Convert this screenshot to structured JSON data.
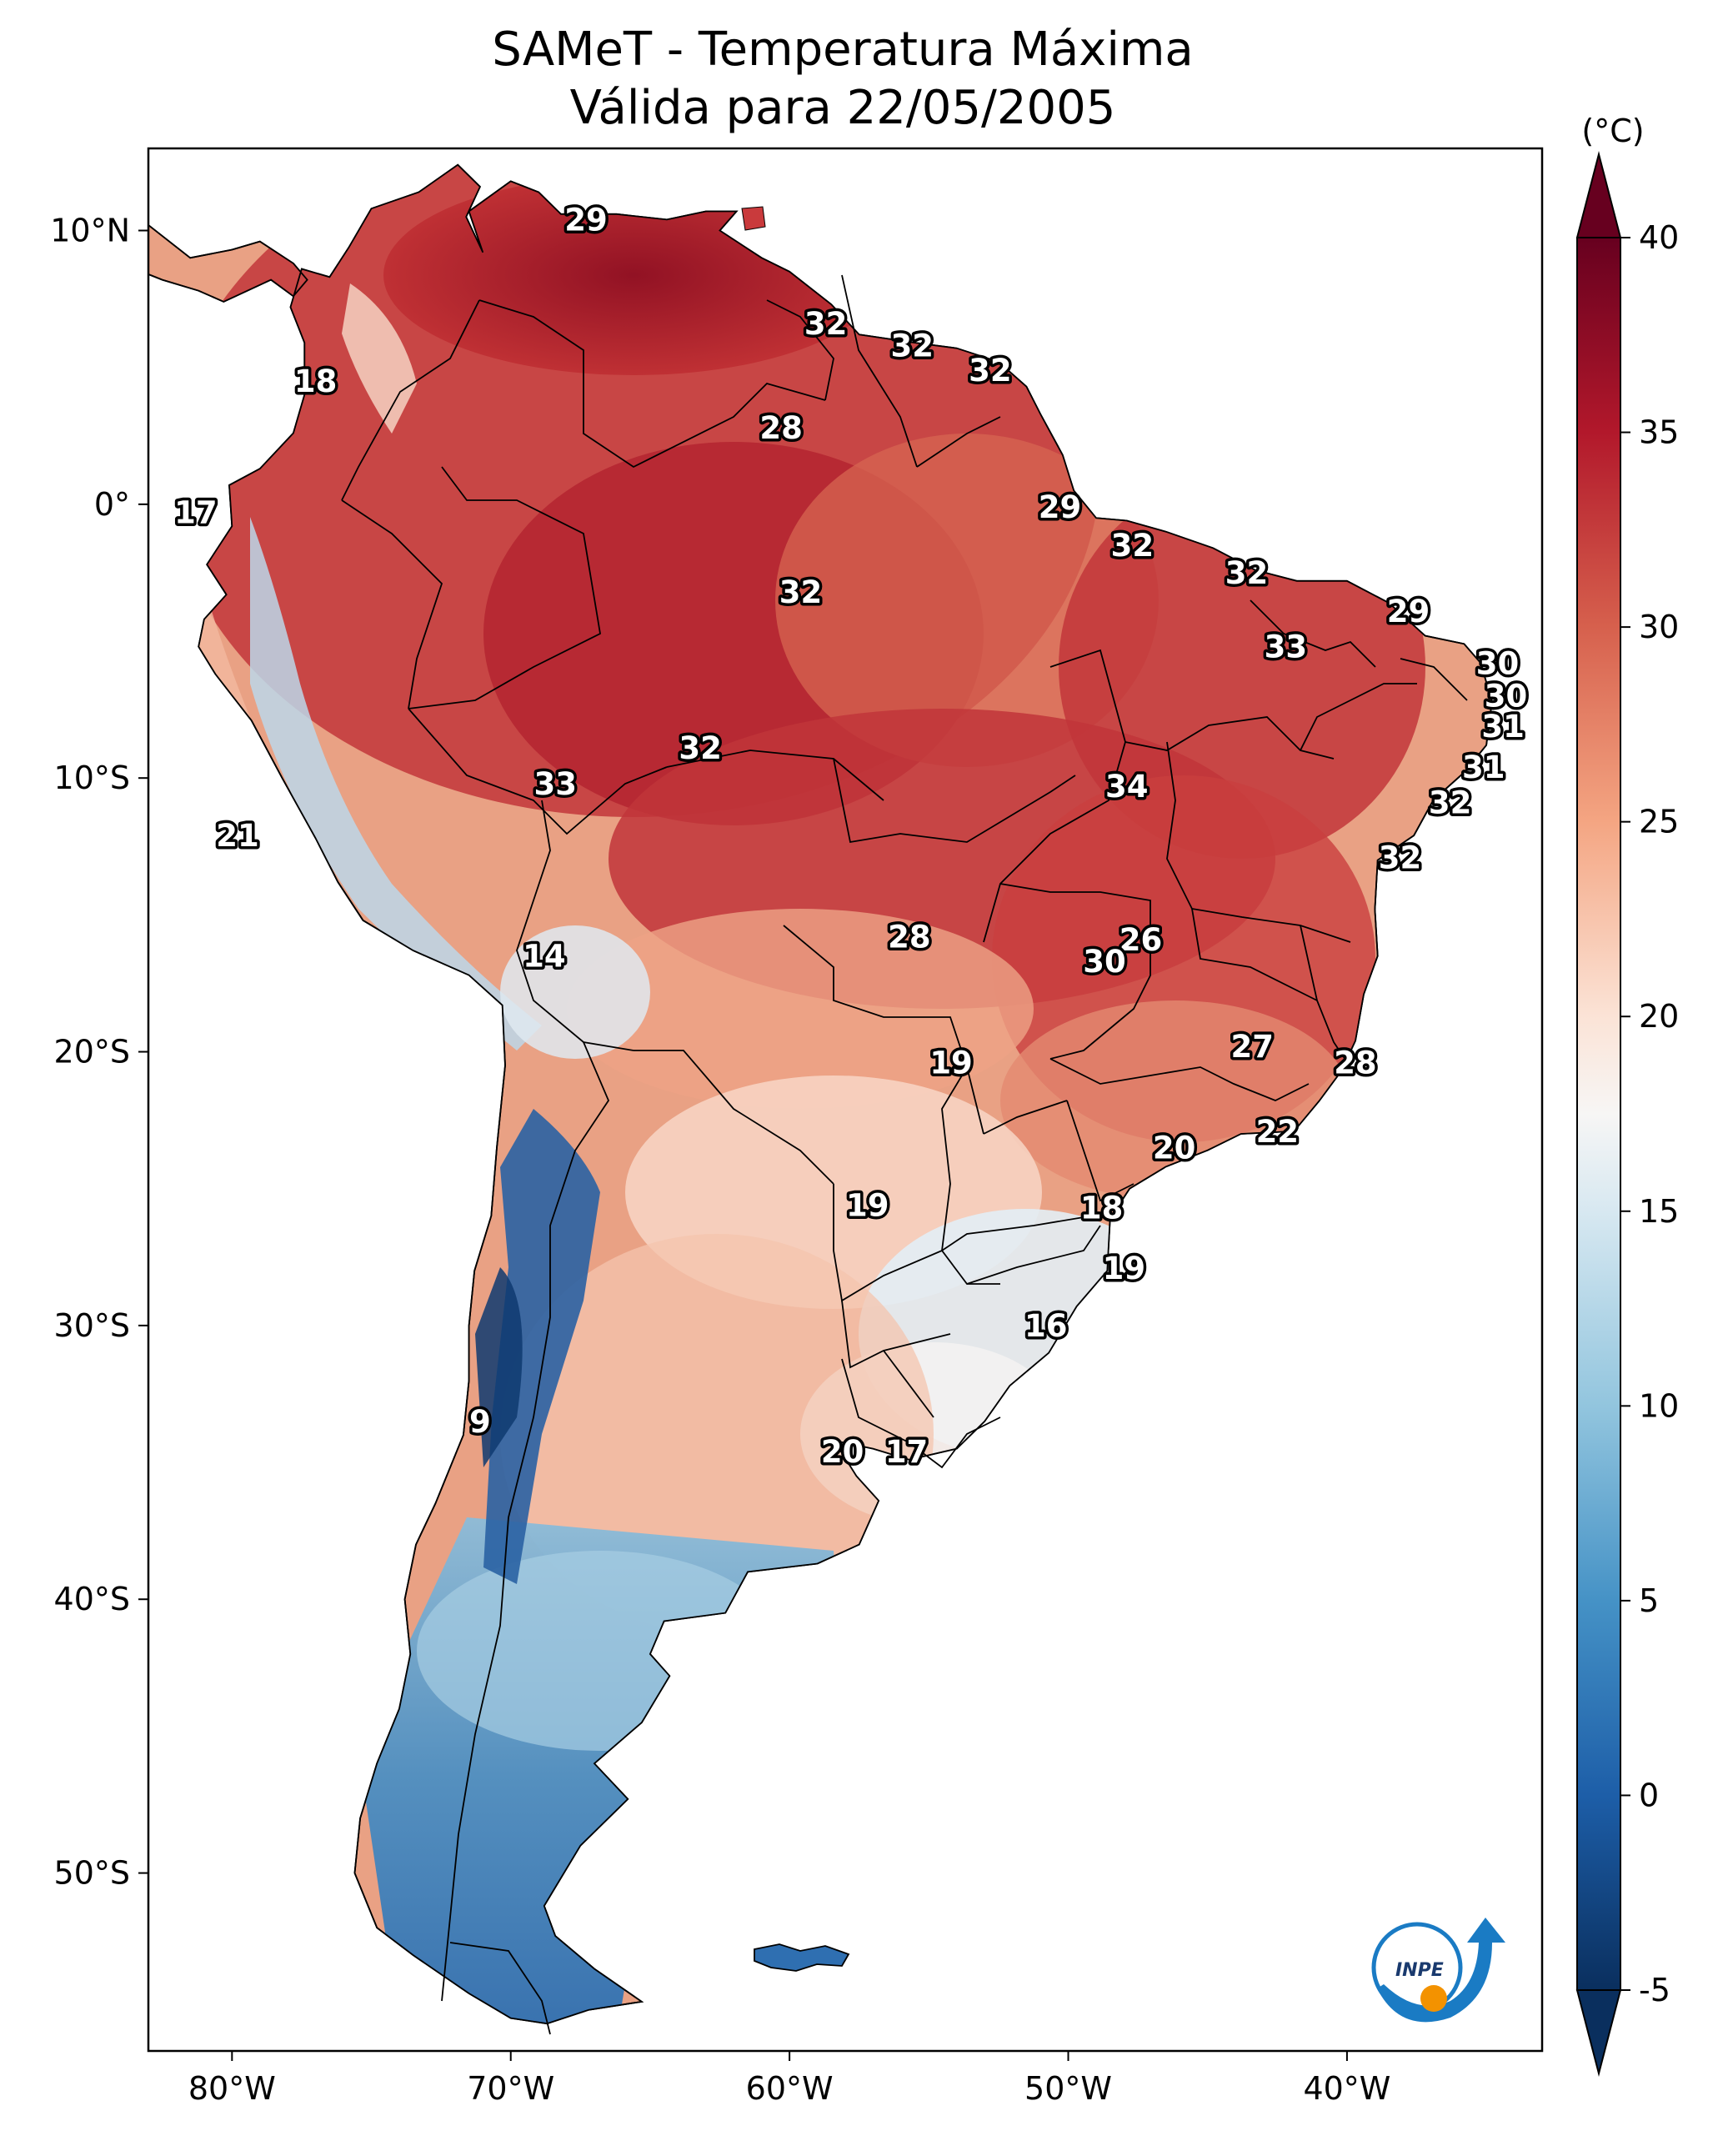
{
  "title": {
    "line1": "SAMeT - Temperatura Máxima",
    "line2": "Válida para 22/05/2005"
  },
  "axes": {
    "lon_ticks": [
      "80°W",
      "70°W",
      "60°W",
      "50°W",
      "40°W"
    ],
    "lat_ticks": [
      "10°N",
      "0°",
      "10°S",
      "20°S",
      "30°S",
      "40°S",
      "50°S"
    ],
    "lon_range": [
      -83,
      -33
    ],
    "lat_range": [
      -56.5,
      13
    ]
  },
  "colorbar": {
    "unit": "(°C)",
    "ticks": [
      "-5",
      "0",
      "5",
      "10",
      "15",
      "20",
      "25",
      "30",
      "35",
      "40"
    ],
    "range": [
      -5,
      40
    ],
    "extend": "both",
    "colormap": "RdBu_r"
  },
  "logo": {
    "text": "INPE",
    "colors": {
      "arc": "#1a7bc4",
      "dot": "#f39200"
    }
  },
  "point_labels": [
    {
      "text": "29",
      "lon": -67.3,
      "lat": 10.4
    },
    {
      "text": "18",
      "lon": -77.0,
      "lat": 4.5
    },
    {
      "text": "17",
      "lon": -81.3,
      "lat": -0.3
    },
    {
      "text": "32",
      "lon": -58.7,
      "lat": 6.6
    },
    {
      "text": "32",
      "lon": -55.6,
      "lat": 5.8
    },
    {
      "text": "32",
      "lon": -52.8,
      "lat": 4.9
    },
    {
      "text": "28",
      "lon": -60.3,
      "lat": 2.8
    },
    {
      "text": "29",
      "lon": -50.3,
      "lat": -0.1
    },
    {
      "text": "32",
      "lon": -47.7,
      "lat": -1.5
    },
    {
      "text": "32",
      "lon": -43.6,
      "lat": -2.5
    },
    {
      "text": "32",
      "lon": -59.6,
      "lat": -3.2
    },
    {
      "text": "29",
      "lon": -37.8,
      "lat": -3.9
    },
    {
      "text": "33",
      "lon": -42.2,
      "lat": -5.2
    },
    {
      "text": "30",
      "lon": -34.6,
      "lat": -5.8
    },
    {
      "text": "30",
      "lon": -34.3,
      "lat": -7.0
    },
    {
      "text": "31",
      "lon": -34.4,
      "lat": -8.1
    },
    {
      "text": "31",
      "lon": -35.1,
      "lat": -9.6
    },
    {
      "text": "32",
      "lon": -36.3,
      "lat": -10.9
    },
    {
      "text": "32",
      "lon": -38.1,
      "lat": -12.9
    },
    {
      "text": "32",
      "lon": -63.2,
      "lat": -8.9
    },
    {
      "text": "33",
      "lon": -68.4,
      "lat": -10.2
    },
    {
      "text": "34",
      "lon": -47.9,
      "lat": -10.3
    },
    {
      "text": "21",
      "lon": -79.8,
      "lat": -12.1
    },
    {
      "text": "28",
      "lon": -55.7,
      "lat": -15.8
    },
    {
      "text": "26",
      "lon": -47.4,
      "lat": -15.9
    },
    {
      "text": "30",
      "lon": -48.7,
      "lat": -16.7
    },
    {
      "text": "14",
      "lon": -68.8,
      "lat": -16.5
    },
    {
      "text": "27",
      "lon": -43.4,
      "lat": -19.8
    },
    {
      "text": "28",
      "lon": -39.7,
      "lat": -20.4
    },
    {
      "text": "19",
      "lon": -54.2,
      "lat": -20.4
    },
    {
      "text": "22",
      "lon": -42.5,
      "lat": -22.9
    },
    {
      "text": "20",
      "lon": -46.2,
      "lat": -23.5
    },
    {
      "text": "19",
      "lon": -57.2,
      "lat": -25.6
    },
    {
      "text": "18",
      "lon": -48.8,
      "lat": -25.7
    },
    {
      "text": "19",
      "lon": -48.0,
      "lat": -27.9
    },
    {
      "text": "16",
      "lon": -50.8,
      "lat": -30.0
    },
    {
      "text": "9",
      "lon": -71.1,
      "lat": -33.5
    },
    {
      "text": "20",
      "lon": -58.1,
      "lat": -34.6
    },
    {
      "text": "17",
      "lon": -55.8,
      "lat": -34.6
    }
  ]
}
